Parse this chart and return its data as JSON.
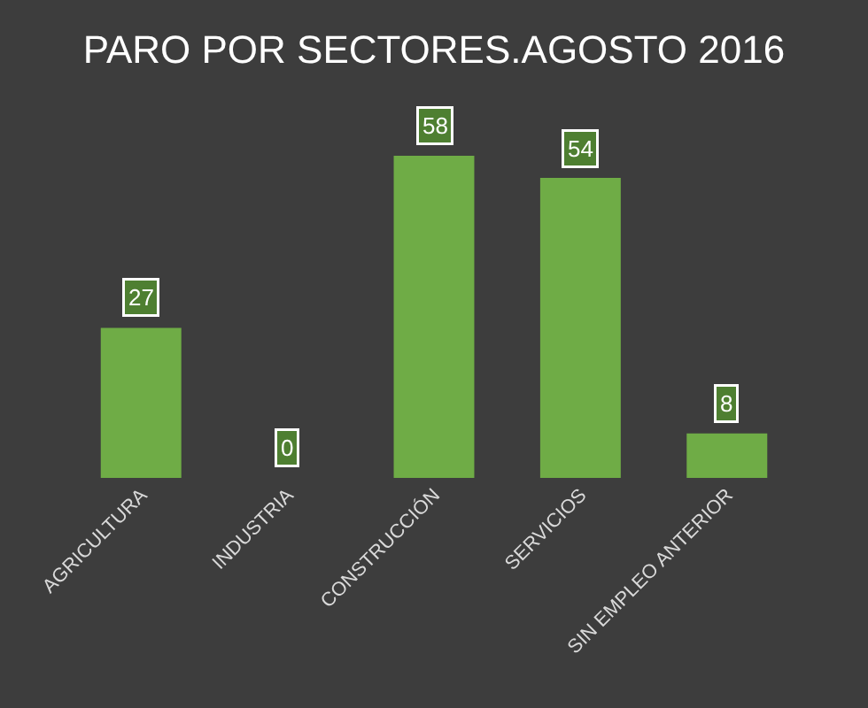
{
  "chart_data": {
    "type": "bar",
    "title": "PARO POR SECTORES.AGOSTO 2016",
    "categories": [
      "AGRICULTURA",
      "INDUSTRIA",
      "CONSTRUCCIÓN",
      "SERVICIOS",
      "SIN EMPLEO ANTERIOR"
    ],
    "values": [
      27,
      0,
      58,
      54,
      8
    ],
    "color": "#6fac46",
    "data_labels": true
  }
}
